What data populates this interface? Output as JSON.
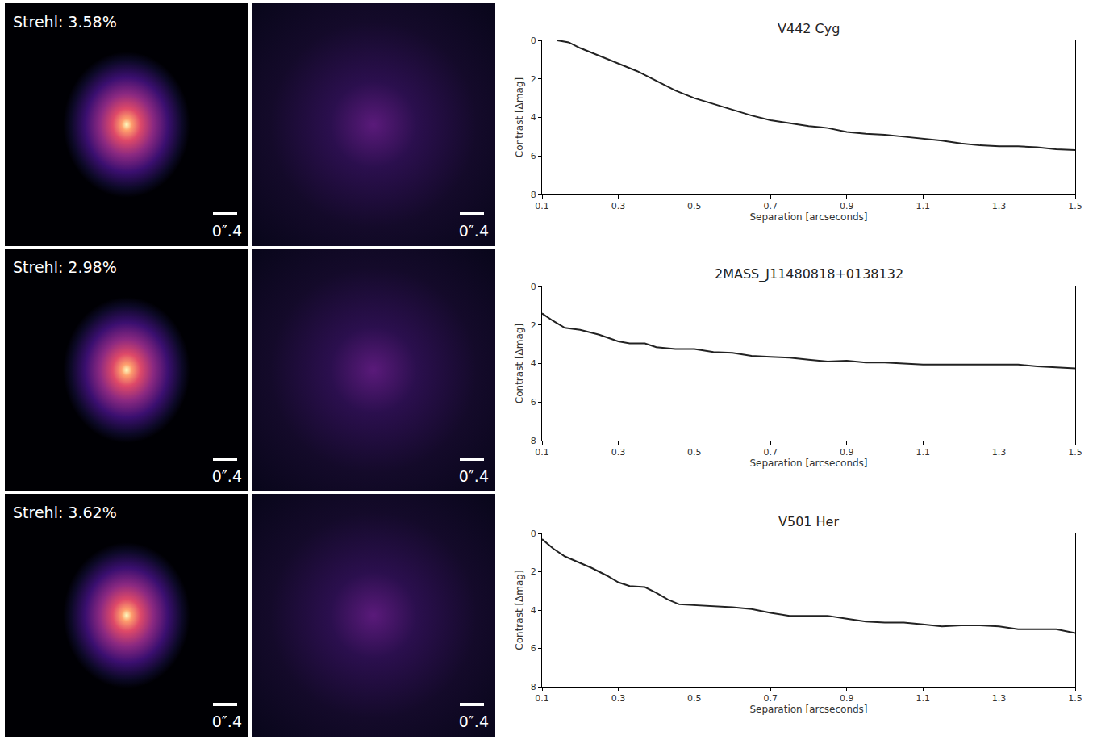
{
  "images": [
    {
      "strehl": "Strehl: 3.58%",
      "scale_bars": [
        "0″.4",
        "0″.4"
      ]
    },
    {
      "strehl": "Strehl: 2.98%",
      "scale_bars": [
        "0″.4",
        "0″.4"
      ]
    },
    {
      "strehl": "Strehl: 3.62%",
      "scale_bars": [
        "0″.4",
        "0″.4"
      ]
    }
  ],
  "chart_data": [
    {
      "type": "line",
      "title": "V442 Cyg",
      "x_label": "Separation [arcseconds]",
      "y_label": "Contrast [Δmag]",
      "color": "#222222",
      "x": [
        0.14,
        0.17,
        0.2,
        0.25,
        0.3,
        0.35,
        0.4,
        0.45,
        0.5,
        0.55,
        0.6,
        0.65,
        0.7,
        0.75,
        0.8,
        0.85,
        0.9,
        0.95,
        1.0,
        1.05,
        1.1,
        1.15,
        1.2,
        1.25,
        1.3,
        1.35,
        1.4,
        1.45,
        1.5
      ],
      "values": [
        0,
        0.1,
        0.4,
        0.8,
        1.2,
        1.6,
        2.1,
        2.6,
        3.0,
        3.3,
        3.6,
        3.9,
        4.15,
        4.3,
        4.45,
        4.55,
        4.75,
        4.85,
        4.9,
        5.0,
        5.1,
        5.2,
        5.35,
        5.45,
        5.5,
        5.5,
        5.55,
        5.65,
        5.7
      ],
      "xlim": [
        0.1,
        1.5
      ],
      "ylim": [
        8,
        0
      ],
      "xticks": [
        0.1,
        0.3,
        0.5,
        0.7,
        0.9,
        1.1,
        1.3,
        1.5
      ],
      "yticks": [
        0,
        2,
        4,
        6,
        8
      ],
      "grid": false
    },
    {
      "type": "line",
      "title": "2MASS_J11480818+0138132",
      "x_label": "Separation [arcseconds]",
      "y_label": "Contrast [Δmag]",
      "color": "#222222",
      "x": [
        0.1,
        0.13,
        0.16,
        0.2,
        0.25,
        0.3,
        0.33,
        0.37,
        0.4,
        0.45,
        0.5,
        0.55,
        0.6,
        0.65,
        0.7,
        0.75,
        0.8,
        0.85,
        0.9,
        0.95,
        1.0,
        1.05,
        1.1,
        1.15,
        1.2,
        1.25,
        1.3,
        1.35,
        1.4,
        1.45,
        1.5
      ],
      "values": [
        1.4,
        1.8,
        2.15,
        2.25,
        2.5,
        2.85,
        2.95,
        2.95,
        3.15,
        3.25,
        3.25,
        3.4,
        3.45,
        3.6,
        3.65,
        3.7,
        3.8,
        3.9,
        3.85,
        3.95,
        3.95,
        4.0,
        4.05,
        4.05,
        4.05,
        4.05,
        4.05,
        4.05,
        4.15,
        4.2,
        4.25
      ],
      "xlim": [
        0.1,
        1.5
      ],
      "ylim": [
        8,
        0
      ],
      "xticks": [
        0.1,
        0.3,
        0.5,
        0.7,
        0.9,
        1.1,
        1.3,
        1.5
      ],
      "yticks": [
        0,
        2,
        4,
        6,
        8
      ],
      "grid": false
    },
    {
      "type": "line",
      "title": "V501 Her",
      "x_label": "Separation [arcseconds]",
      "y_label": "Contrast [Δmag]",
      "color": "#222222",
      "x": [
        0.1,
        0.13,
        0.16,
        0.2,
        0.23,
        0.27,
        0.3,
        0.33,
        0.37,
        0.4,
        0.43,
        0.46,
        0.5,
        0.55,
        0.6,
        0.65,
        0.7,
        0.75,
        0.8,
        0.85,
        0.9,
        0.95,
        1.0,
        1.05,
        1.1,
        1.15,
        1.2,
        1.25,
        1.3,
        1.35,
        1.4,
        1.45,
        1.5
      ],
      "values": [
        0.3,
        0.8,
        1.2,
        1.55,
        1.8,
        2.2,
        2.55,
        2.75,
        2.8,
        3.1,
        3.45,
        3.7,
        3.75,
        3.8,
        3.85,
        3.95,
        4.15,
        4.3,
        4.3,
        4.3,
        4.45,
        4.6,
        4.65,
        4.65,
        4.75,
        4.85,
        4.8,
        4.8,
        4.85,
        5.0,
        5.0,
        5.0,
        5.2
      ],
      "xlim": [
        0.1,
        1.5
      ],
      "ylim": [
        8,
        0
      ],
      "xticks": [
        0.1,
        0.3,
        0.5,
        0.7,
        0.9,
        1.1,
        1.3,
        1.5
      ],
      "yticks": [
        0,
        2,
        4,
        6,
        8
      ],
      "grid": false
    }
  ]
}
